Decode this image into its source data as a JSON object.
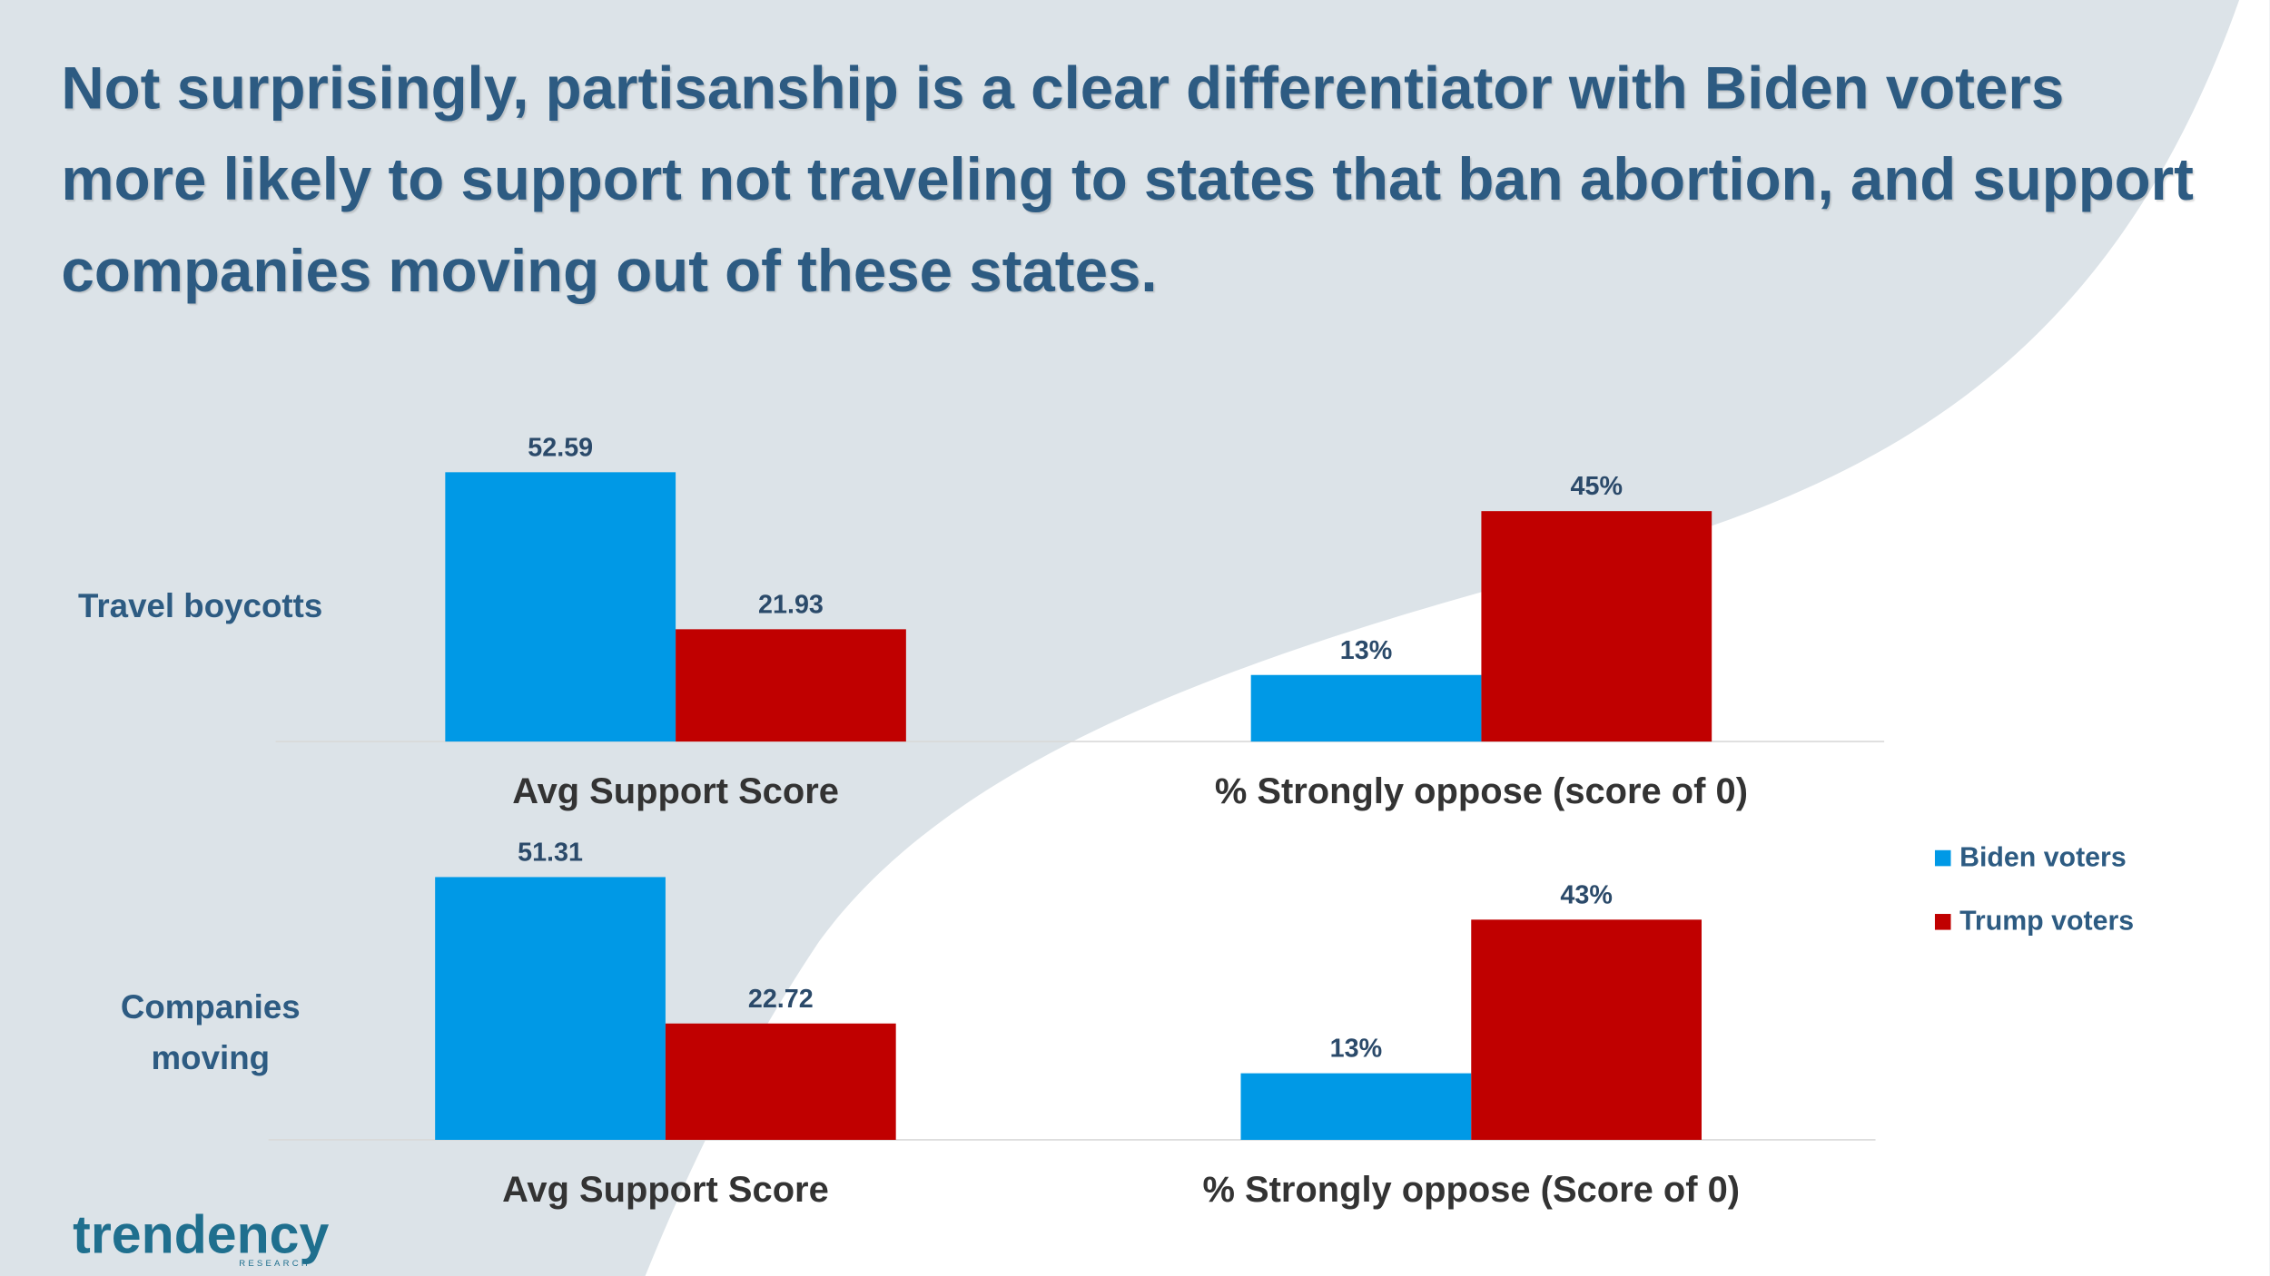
{
  "title": "Not surprisingly, partisanship is a clear differentiator with Biden voters more likely to support not traveling to states that ban abortion, and support companies moving out of these states.",
  "logo": {
    "name": "trendency",
    "tagline": "RESEARCH"
  },
  "chart_data": [
    {
      "type": "bar",
      "title": "Travel boycotts",
      "categories": [
        "Avg Support Score",
        "% Strongly oppose (score of 0)"
      ],
      "series": [
        {
          "name": "Biden voters",
          "color": "#0099e6",
          "values": [
            52.59,
            13
          ],
          "value_labels": [
            "52.59",
            "13%"
          ]
        },
        {
          "name": "Trump voters",
          "color": "#c00000",
          "values": [
            21.93,
            45
          ],
          "value_labels": [
            "21.93",
            "45%"
          ]
        }
      ],
      "ylim": [
        0,
        60
      ],
      "legend": "right"
    },
    {
      "type": "bar",
      "title": "Companies moving",
      "categories": [
        "Avg Support Score",
        "% Strongly oppose (Score of 0)"
      ],
      "series": [
        {
          "color": "#0099e6",
          "values": [
            51.31,
            13
          ],
          "value_labels": [
            "51.31",
            "13%"
          ]
        },
        {
          "color": "#c00000",
          "values": [
            22.72,
            43
          ],
          "value_labels": [
            "22.72",
            "43%"
          ]
        }
      ],
      "ylim": [
        0,
        60
      ]
    }
  ]
}
